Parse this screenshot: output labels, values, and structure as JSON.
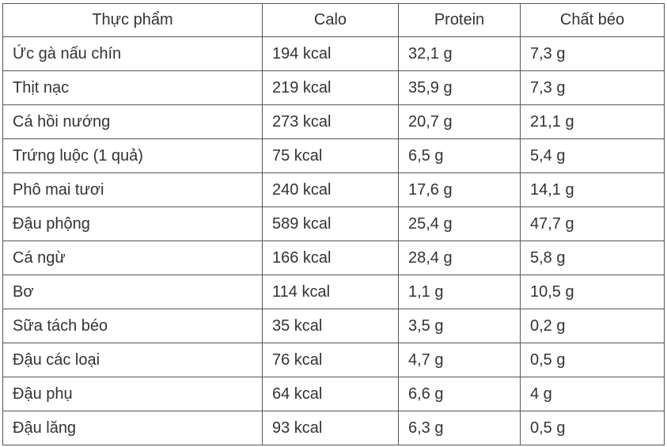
{
  "table": {
    "headers": [
      "Thực phẩm",
      "Calo",
      "Protein",
      "Chất béo"
    ],
    "rows": [
      [
        "Ức gà nấu chín",
        "194 kcal",
        "32,1 g",
        "7,3 g"
      ],
      [
        "Thịt nạc",
        "219 kcal",
        "35,9 g",
        "7,3 g"
      ],
      [
        "Cá hồi nướng",
        "273 kcal",
        "20,7 g",
        "21,1 g"
      ],
      [
        "Trứng luộc (1 quả)",
        "75 kcal",
        "6,5 g",
        "5,4 g"
      ],
      [
        "Phô mai tươi",
        "240 kcal",
        "17,6 g",
        "14,1 g"
      ],
      [
        "Đậu phộng",
        "589 kcal",
        "25,4 g",
        "47,7 g"
      ],
      [
        "Cá ngừ",
        "166 kcal",
        "28,4 g",
        "5,8 g"
      ],
      [
        "Bơ",
        "114 kcal",
        "1,1 g",
        "10,5 g"
      ],
      [
        "Sữa tách béo",
        "35 kcal",
        "3,5 g",
        "0,2 g"
      ],
      [
        "Đậu các loại",
        "76 kcal",
        "4,7 g",
        "0,5 g"
      ],
      [
        "Đậu phụ",
        "64 kcal",
        "6,6 g",
        "4 g"
      ],
      [
        "Đậu lăng",
        "93 kcal",
        "6,3 g",
        "0,5 g"
      ]
    ]
  }
}
